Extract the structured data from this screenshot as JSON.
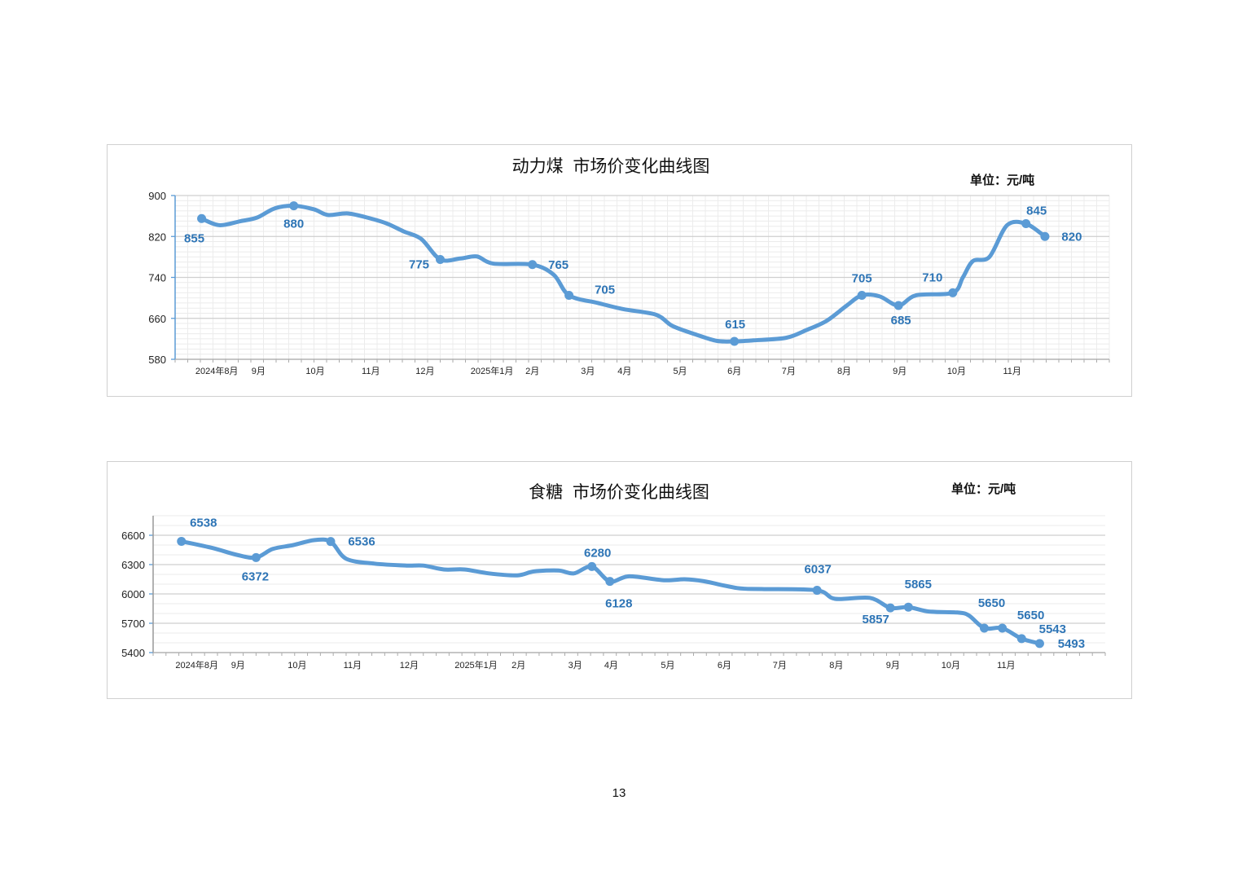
{
  "page_number": "13",
  "chart_data": [
    {
      "type": "line",
      "title": "动力煤  市场价变化曲线图",
      "unit": "单位：元/吨",
      "xlabel": "",
      "ylabel": "",
      "ylim": [
        580,
        900
      ],
      "yticks": [
        580,
        660,
        740,
        820,
        900
      ],
      "xlim": [
        0,
        74
      ],
      "x_unit": "week index",
      "xticks": [
        {
          "x": 3.3,
          "label": "2024年8月"
        },
        {
          "x": 6.6,
          "label": "9月"
        },
        {
          "x": 11.1,
          "label": "10月"
        },
        {
          "x": 15.5,
          "label": "11月"
        },
        {
          "x": 19.8,
          "label": "12月"
        },
        {
          "x": 25.1,
          "label": "2025年1月"
        },
        {
          "x": 28.3,
          "label": "2月"
        },
        {
          "x": 32.7,
          "label": "3月"
        },
        {
          "x": 35.6,
          "label": "4月"
        },
        {
          "x": 40,
          "label": "5月"
        },
        {
          "x": 44.3,
          "label": "6月"
        },
        {
          "x": 48.6,
          "label": "7月"
        },
        {
          "x": 53,
          "label": "8月"
        },
        {
          "x": 57.4,
          "label": "9月"
        },
        {
          "x": 61.9,
          "label": "10月"
        },
        {
          "x": 66.3,
          "label": "11月"
        }
      ],
      "grid": true,
      "color": "#5b9bd5",
      "label_color": "#2e75b6",
      "series": [
        {
          "name": "动力煤",
          "x": [
            2.1,
            3.5,
            5.2,
            6.5,
            7.9,
            9.4,
            11,
            12.1,
            13.7,
            15.5,
            16.8,
            18.1,
            19.5,
            21,
            22.6,
            23.9,
            25.2,
            28.3,
            30,
            31.2,
            33.5,
            35.5,
            38.1,
            39.4,
            41.3,
            42.9,
            44.3,
            45.8,
            48.4,
            50,
            51.6,
            53.2,
            54.4,
            55.8,
            57.3,
            58.7,
            61.6,
            62.4,
            63.2,
            64.5,
            65.9,
            67.4,
            68.9
          ],
          "y": [
            855,
            842,
            850,
            857,
            875,
            880,
            873,
            862,
            865,
            855,
            845,
            830,
            815,
            775,
            777,
            781,
            767,
            765,
            745,
            705,
            690,
            678,
            667,
            645,
            628,
            616,
            615,
            617,
            622,
            637,
            655,
            685,
            705,
            703,
            685,
            705,
            710,
            740,
            772,
            780,
            842,
            845,
            820
          ]
        }
      ],
      "labeled_points": [
        {
          "x": 2.1,
          "y": 855,
          "label": "855"
        },
        {
          "x": 9.4,
          "y": 880,
          "label": "880"
        },
        {
          "x": 21,
          "y": 775,
          "label": "775"
        },
        {
          "x": 28.3,
          "y": 765,
          "label": "765"
        },
        {
          "x": 31.2,
          "y": 705,
          "label": "705"
        },
        {
          "x": 44.3,
          "y": 615,
          "label": "615"
        },
        {
          "x": 54.4,
          "y": 705,
          "label": "705"
        },
        {
          "x": 57.3,
          "y": 685,
          "label": "685"
        },
        {
          "x": 61.6,
          "y": 710,
          "label": "710"
        },
        {
          "x": 67.4,
          "y": 845,
          "label": "845"
        },
        {
          "x": 68.9,
          "y": 820,
          "label": "820"
        }
      ]
    },
    {
      "type": "line",
      "title": "食糖  市场价变化曲线图",
      "unit": "单位：元/吨",
      "xlabel": "",
      "ylabel": "",
      "ylim": [
        5400,
        6800
      ],
      "yticks": [
        5400,
        5700,
        6000,
        6300,
        6600
      ],
      "xlim": [
        0,
        74
      ],
      "x_unit": "week index",
      "xticks": [
        {
          "x": 3.4,
          "label": "2024年8月"
        },
        {
          "x": 6.6,
          "label": "9月"
        },
        {
          "x": 11.2,
          "label": "10月"
        },
        {
          "x": 15.5,
          "label": "11月"
        },
        {
          "x": 19.9,
          "label": "12月"
        },
        {
          "x": 25.1,
          "label": "2025年1月"
        },
        {
          "x": 28.4,
          "label": "2月"
        },
        {
          "x": 32.8,
          "label": "3月"
        },
        {
          "x": 35.6,
          "label": "4月"
        },
        {
          "x": 40,
          "label": "5月"
        },
        {
          "x": 44.4,
          "label": "6月"
        },
        {
          "x": 48.7,
          "label": "7月"
        },
        {
          "x": 53.1,
          "label": "8月"
        },
        {
          "x": 57.5,
          "label": "9月"
        },
        {
          "x": 62,
          "label": "10月"
        },
        {
          "x": 66.3,
          "label": "11月"
        }
      ],
      "grid": true,
      "color": "#5b9bd5",
      "label_color": "#2e75b6",
      "series": [
        {
          "name": "食糖",
          "x": [
            2.2,
            4.6,
            6.5,
            8,
            9.3,
            10.9,
            12.5,
            13.8,
            15,
            17.2,
            19.7,
            21,
            22.6,
            24.2,
            26.1,
            28.3,
            29.6,
            31.5,
            32.7,
            34.1,
            35.5,
            37,
            39.7,
            41.3,
            42.8,
            45.4,
            47.3,
            51.6,
            53,
            55.7,
            57.3,
            58.7,
            60.3,
            62.5,
            63.4,
            64.6,
            66,
            67.5,
            68.9
          ],
          "y": [
            6538,
            6470,
            6400,
            6372,
            6460,
            6500,
            6550,
            6536,
            6360,
            6310,
            6290,
            6290,
            6250,
            6250,
            6210,
            6190,
            6230,
            6240,
            6210,
            6280,
            6128,
            6180,
            6140,
            6150,
            6130,
            6060,
            6050,
            6037,
            5950,
            5960,
            5857,
            5865,
            5820,
            5810,
            5780,
            5650,
            5650,
            5543,
            5493
          ]
        }
      ],
      "labeled_points": [
        {
          "x": 2.2,
          "y": 6538,
          "label": "6538"
        },
        {
          "x": 8,
          "y": 6372,
          "label": "6372"
        },
        {
          "x": 13.8,
          "y": 6536,
          "label": "6536"
        },
        {
          "x": 34.1,
          "y": 6280,
          "label": "6280"
        },
        {
          "x": 35.5,
          "y": 6128,
          "label": "6128"
        },
        {
          "x": 51.6,
          "y": 6037,
          "label": "6037"
        },
        {
          "x": 57.3,
          "y": 5857,
          "label": "5857"
        },
        {
          "x": 58.7,
          "y": 5865,
          "label": "5865"
        },
        {
          "x": 64.6,
          "y": 5650,
          "label": "5650"
        },
        {
          "x": 66,
          "y": 5650,
          "label": "5650"
        },
        {
          "x": 67.5,
          "y": 5543,
          "label": "5543"
        },
        {
          "x": 68.9,
          "y": 5493,
          "label": "5493"
        }
      ]
    }
  ]
}
